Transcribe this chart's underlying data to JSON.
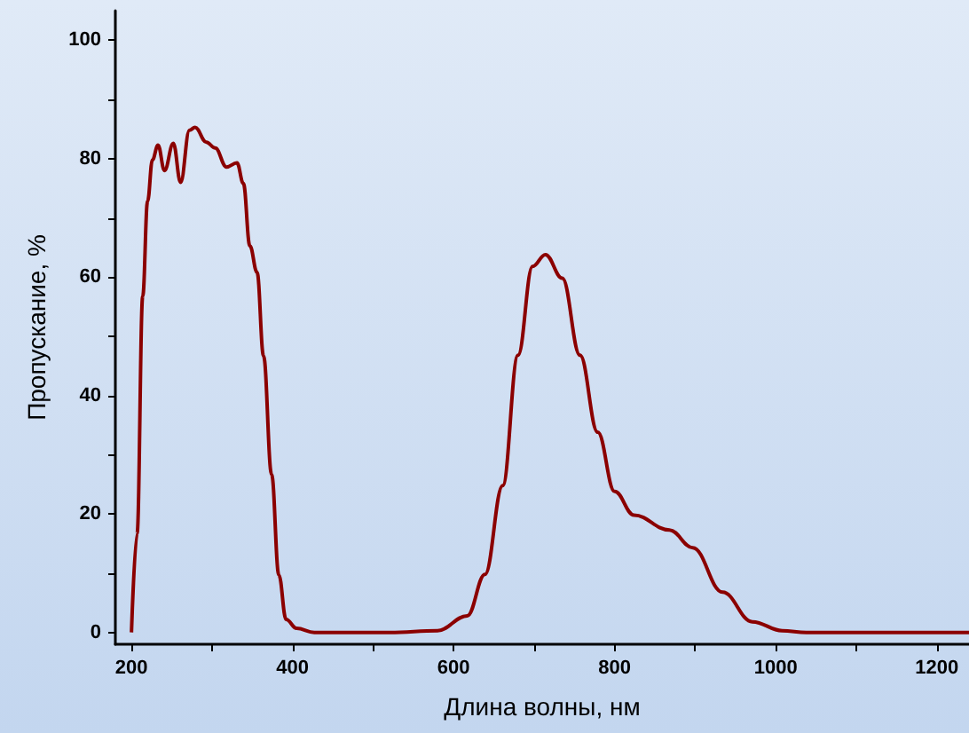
{
  "chart_data": {
    "type": "line",
    "xlabel": "Длина волны, нм",
    "ylabel": "Пропускание, %",
    "xlim": [
      180,
      1240
    ],
    "ylim": [
      -2,
      105
    ],
    "xticks": [
      200,
      {
        "value": 300,
        "label": null
      },
      400,
      {
        "value": 500,
        "label": null
      },
      600,
      {
        "value": 700,
        "label": null
      },
      800,
      {
        "value": 900,
        "label": null
      },
      1000,
      {
        "value": 1100,
        "label": null
      },
      1200
    ],
    "yticks": [
      0,
      {
        "value": 10,
        "label": null
      },
      20,
      {
        "value": 30,
        "label": null
      },
      40,
      {
        "value": 50,
        "label": null
      },
      60,
      {
        "value": 70,
        "label": null
      },
      80,
      {
        "value": 90,
        "label": null
      },
      100
    ],
    "grid": false,
    "marker": "none",
    "line_style": "solid",
    "series": [
      {
        "color": "#8b0000",
        "x": [
          200,
          207,
          214,
          220,
          226,
          233,
          241,
          252,
          261,
          272,
          279,
          293,
          304,
          318,
          331,
          339,
          347,
          356,
          364,
          374,
          383,
          392,
          405,
          427,
          521,
          580,
          617,
          639,
          661,
          680,
          698,
          714,
          735,
          757,
          779,
          800,
          824,
          868,
          897,
          934,
          971,
          1008,
          1038,
          1240
        ],
        "values": [
          0,
          16.7,
          56.8,
          72.8,
          79.8,
          82.3,
          78,
          82.6,
          76,
          84.8,
          85.3,
          82.8,
          81.8,
          78.6,
          79.3,
          75.8,
          65.3,
          60.8,
          46.7,
          26.7,
          9.7,
          2.2,
          0.7,
          0,
          0,
          0.3,
          2.8,
          9.8,
          24.8,
          46.8,
          61.8,
          63.8,
          59.8,
          46.8,
          33.8,
          23.8,
          19.8,
          17.3,
          14.3,
          6.8,
          1.8,
          0.3,
          0,
          0
        ]
      }
    ]
  }
}
